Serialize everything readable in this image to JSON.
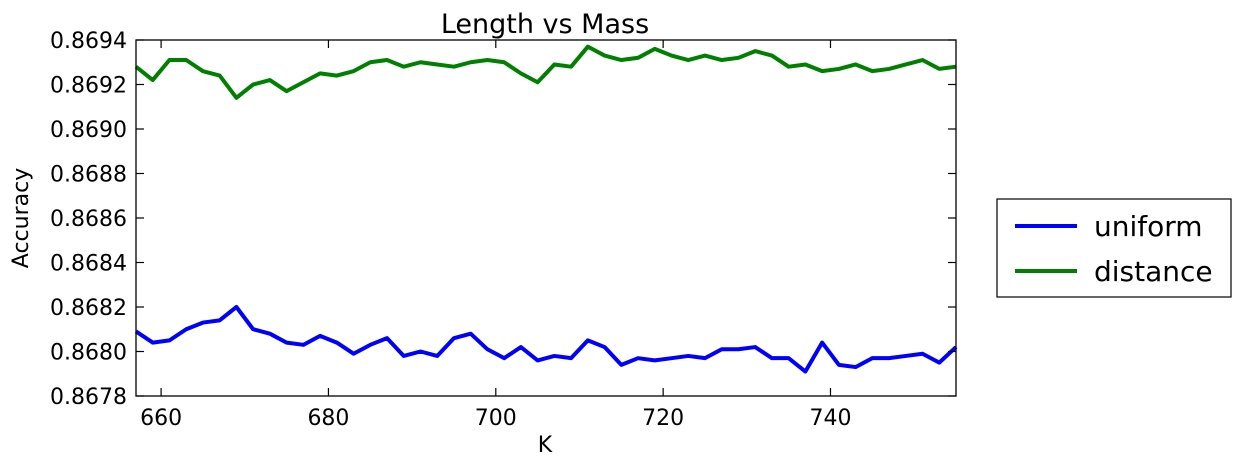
{
  "chart_data": {
    "type": "line",
    "title": "Length vs Mass",
    "xlabel": "K",
    "ylabel": "Accuracy",
    "xlim": [
      657,
      755
    ],
    "ylim": [
      0.8678,
      0.8694
    ],
    "xticks": [
      660,
      680,
      700,
      720,
      740
    ],
    "xtick_labels": [
      "660",
      "680",
      "700",
      "720",
      "740"
    ],
    "yticks": [
      0.8678,
      0.868,
      0.8682,
      0.8684,
      0.8686,
      0.8688,
      0.869,
      0.8692,
      0.8694
    ],
    "ytick_labels": [
      "0.8678",
      "0.8680",
      "0.8682",
      "0.8684",
      "0.8686",
      "0.8688",
      "0.8690",
      "0.8692",
      "0.8694"
    ],
    "grid": false,
    "legend_position": "outside-right",
    "x": [
      657,
      659,
      661,
      663,
      665,
      667,
      669,
      671,
      673,
      675,
      677,
      679,
      681,
      683,
      685,
      687,
      689,
      691,
      693,
      695,
      697,
      699,
      701,
      703,
      705,
      707,
      709,
      711,
      713,
      715,
      717,
      719,
      721,
      723,
      725,
      727,
      729,
      731,
      733,
      735,
      737,
      739,
      741,
      743,
      745,
      747,
      749,
      751,
      753,
      755
    ],
    "series": [
      {
        "name": "uniform",
        "color": "#0000ff",
        "values": [
          0.86809,
          0.86804,
          0.86805,
          0.8681,
          0.86813,
          0.86814,
          0.8682,
          0.8681,
          0.86808,
          0.86804,
          0.86803,
          0.86807,
          0.86804,
          0.86799,
          0.86803,
          0.86806,
          0.86798,
          0.868,
          0.86798,
          0.86806,
          0.86808,
          0.86801,
          0.86797,
          0.86802,
          0.86796,
          0.86798,
          0.86797,
          0.86805,
          0.86802,
          0.86794,
          0.86797,
          0.86796,
          0.86797,
          0.86798,
          0.86797,
          0.86801,
          0.86801,
          0.86802,
          0.86797,
          0.86797,
          0.86791,
          0.86804,
          0.86794,
          0.86793,
          0.86797,
          0.86797,
          0.86798,
          0.86799,
          0.86795,
          0.86802
        ]
      },
      {
        "name": "distance",
        "color": "#008000",
        "values": [
          0.86928,
          0.86922,
          0.86931,
          0.86931,
          0.86926,
          0.86924,
          0.86914,
          0.8692,
          0.86922,
          0.86917,
          0.86921,
          0.86925,
          0.86924,
          0.86926,
          0.8693,
          0.86931,
          0.86928,
          0.8693,
          0.86929,
          0.86928,
          0.8693,
          0.86931,
          0.8693,
          0.86925,
          0.86921,
          0.86929,
          0.86928,
          0.86937,
          0.86933,
          0.86931,
          0.86932,
          0.86936,
          0.86933,
          0.86931,
          0.86933,
          0.86931,
          0.86932,
          0.86935,
          0.86933,
          0.86928,
          0.86929,
          0.86926,
          0.86927,
          0.86929,
          0.86926,
          0.86927,
          0.86929,
          0.86931,
          0.86927,
          0.86928
        ]
      }
    ]
  }
}
